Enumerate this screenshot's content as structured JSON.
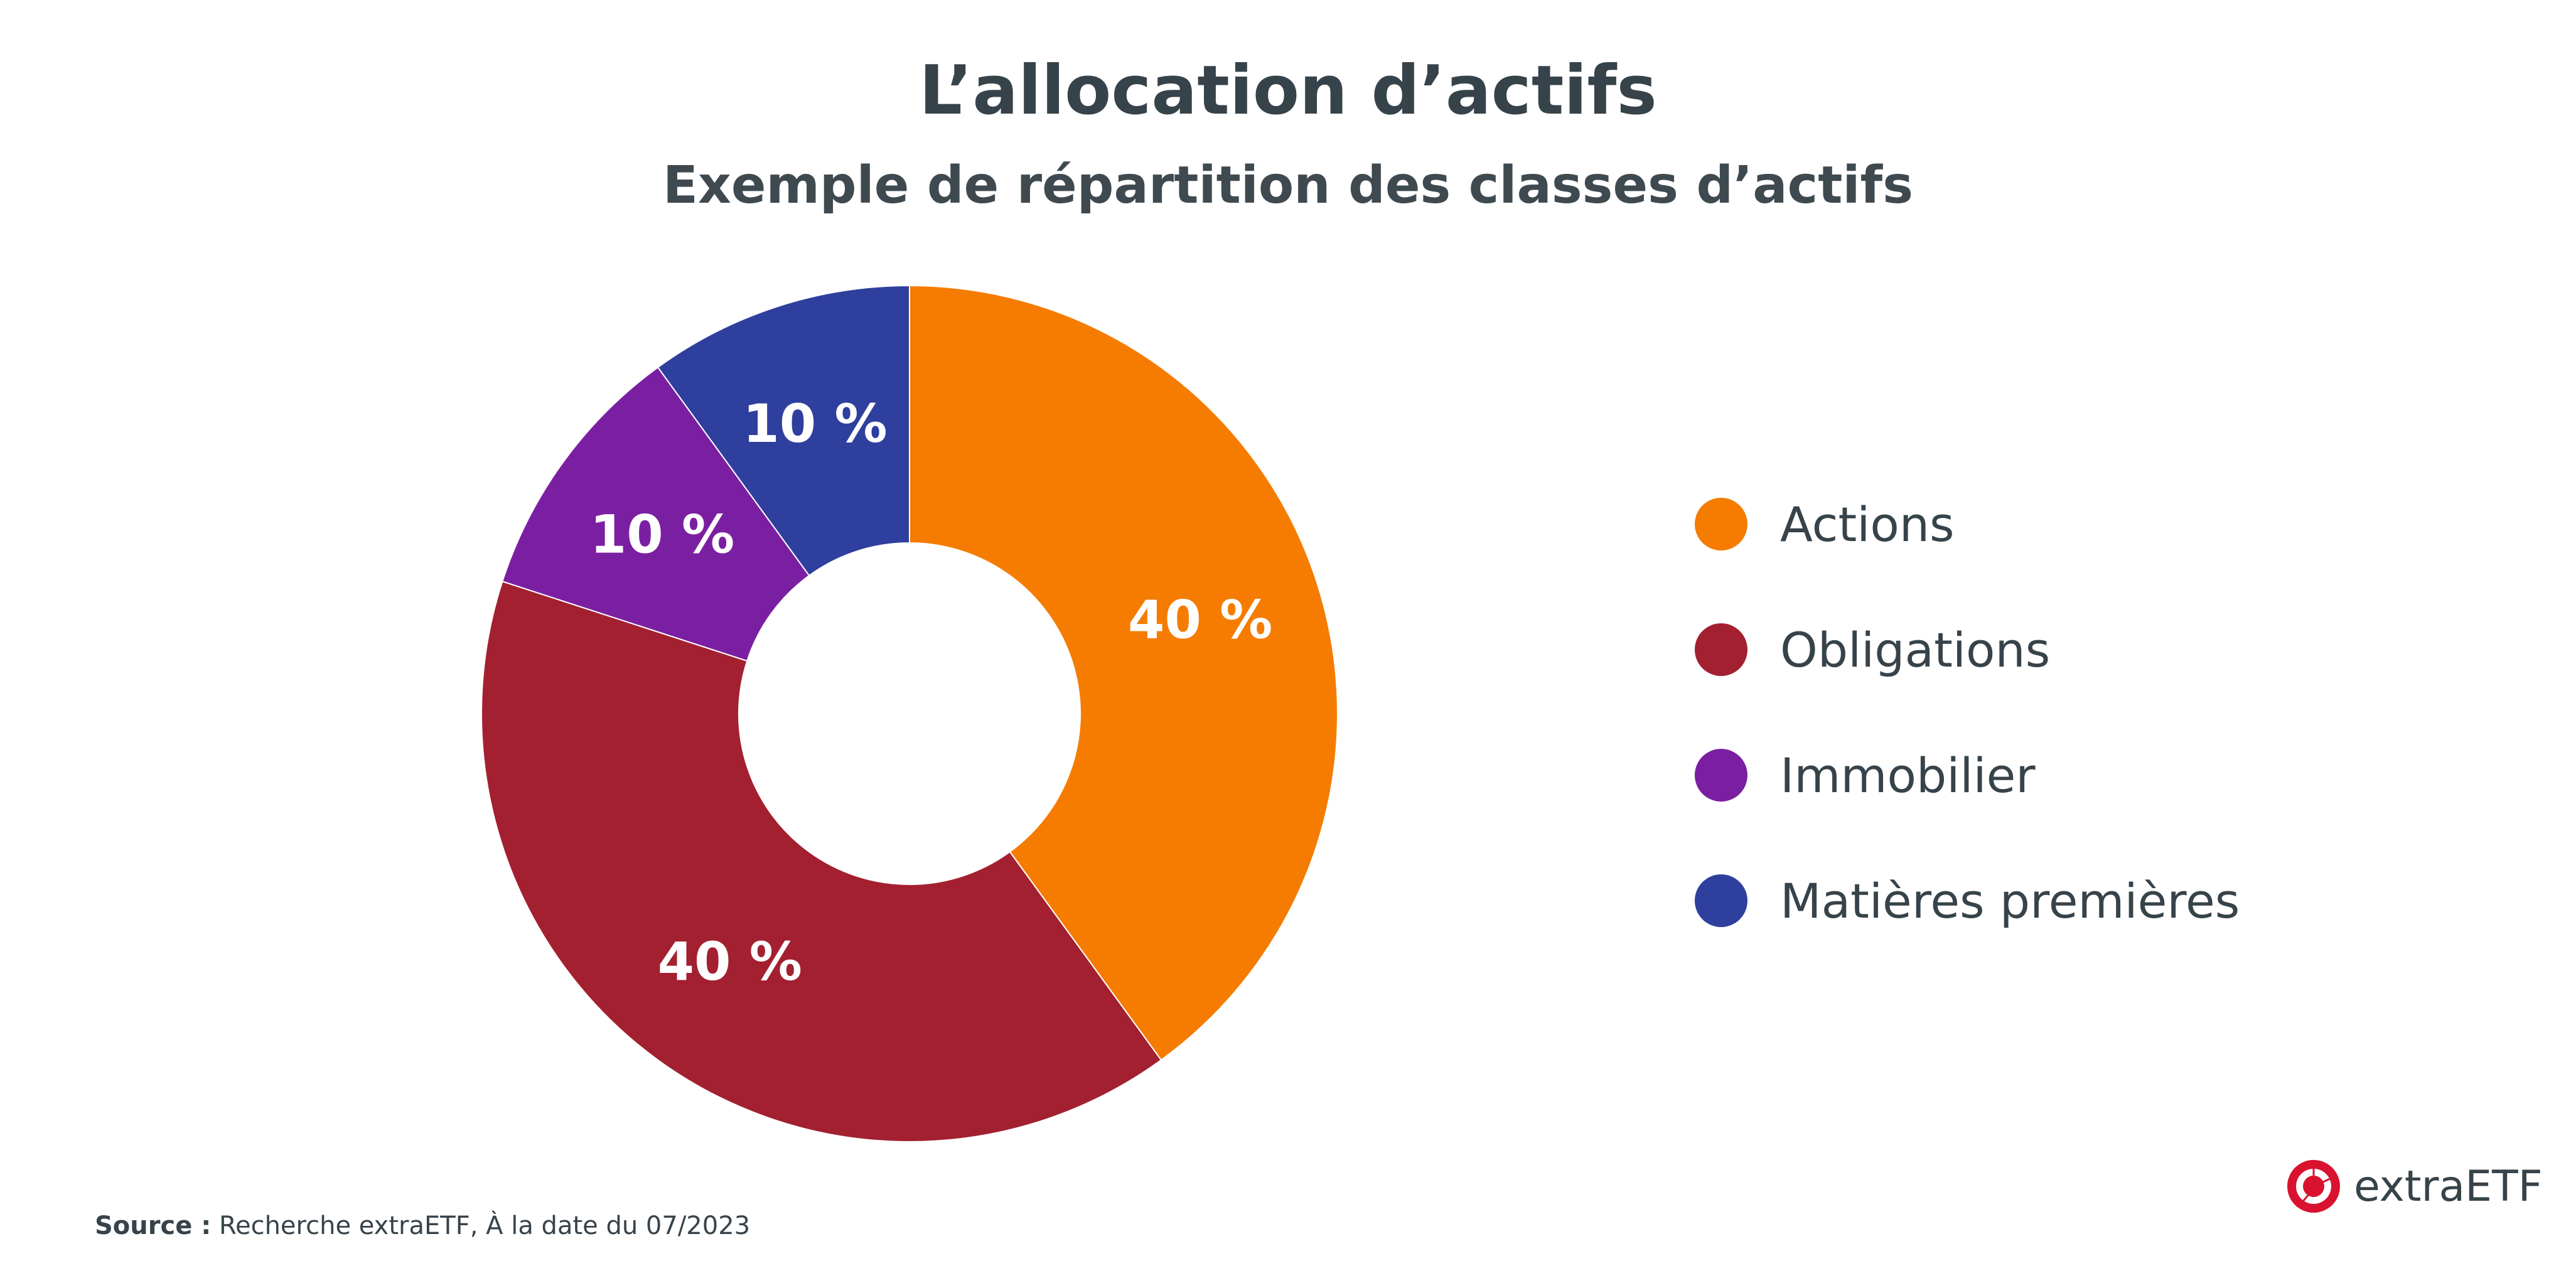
{
  "chart_data": {
    "type": "pie",
    "variant": "donut",
    "title": "L’allocation d’actifs",
    "subtitle": "Exemple de répartition des classes d’actifs",
    "categories": [
      "Actions",
      "Obligations",
      "Immobilier",
      "Matières premières"
    ],
    "values": [
      40,
      40,
      10,
      10
    ],
    "data_labels": [
      "40 %",
      "40 %",
      "10 %",
      "10 %"
    ],
    "colors": [
      "#f57c00",
      "#a32030",
      "#7b1fa2",
      "#2e3f9e"
    ],
    "legend_position": "right"
  },
  "footer": {
    "source_label": "Source :",
    "source_text": " Recherche extraETF, À la date du 07/2023"
  },
  "logo": {
    "text": "extraETF",
    "color": "#d9122f"
  }
}
